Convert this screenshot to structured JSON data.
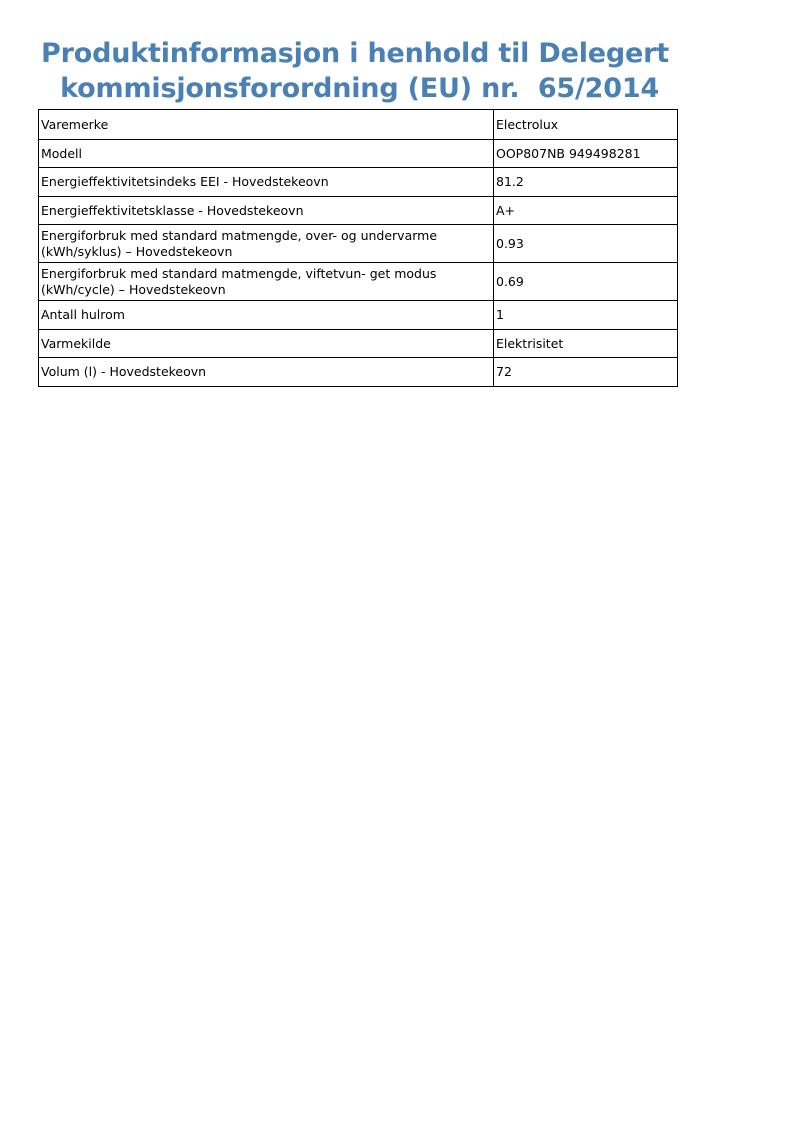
{
  "title": {
    "line1": "Produktinformasjon i henhold til Delegert",
    "line2": " kommisjonsforordning (EU) nr.  65/2014"
  },
  "rows": [
    {
      "label": "Varemerke",
      "value": "Electrolux"
    },
    {
      "label": "Modell",
      "value": "OOP807NB 949498281"
    },
    {
      "label": "Energieffektivitetsindeks EEI - Hovedstekeovn",
      "value": "81.2"
    },
    {
      "label": "Energieffektivitetsklasse - Hovedstekeovn",
      "value": "A+"
    },
    {
      "label": "Energiforbruk med standard matmengde, over- og undervarme (kWh/syklus) – Hovedstekeovn",
      "value": "0.93"
    },
    {
      "label": "Energiforbruk med standard matmengde, viftetvun- get modus (kWh/cycle) – Hovedstekeovn",
      "value": "0.69"
    },
    {
      "label": "Antall hulrom",
      "value": "1"
    },
    {
      "label": "Varmekilde",
      "value": "Elektrisitet"
    },
    {
      "label": "Volum (l) - Hovedstekeovn",
      "value": "72"
    }
  ]
}
